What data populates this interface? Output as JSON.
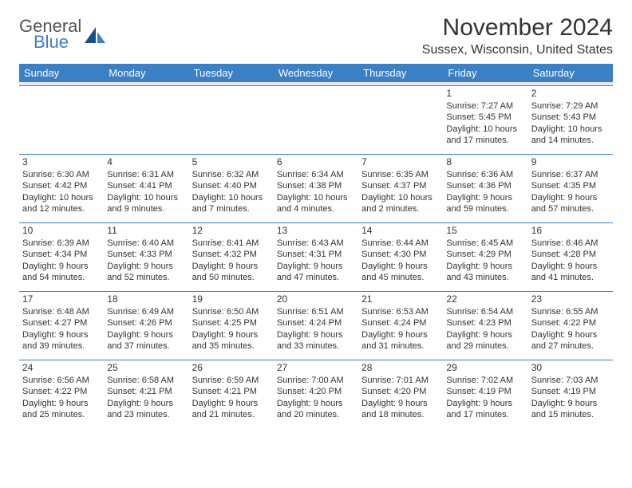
{
  "logo": {
    "word1": "General",
    "word2": "Blue",
    "accent_color": "#3b7fc4",
    "text_color": "#555555"
  },
  "title": "November 2024",
  "location": "Sussex, Wisconsin, United States",
  "colors": {
    "header_bg": "#3b7fc4",
    "header_text": "#ffffff",
    "cell_border": "#3b7fc4",
    "body_text": "#333333",
    "spacer_bg": "#eaeaea",
    "page_bg": "#ffffff"
  },
  "typography": {
    "title_fontsize": 30,
    "location_fontsize": 16,
    "header_fontsize": 13,
    "cell_fontsize": 11,
    "font_family": "Arial"
  },
  "day_headers": [
    "Sunday",
    "Monday",
    "Tuesday",
    "Wednesday",
    "Thursday",
    "Friday",
    "Saturday"
  ],
  "weeks": [
    [
      null,
      null,
      null,
      null,
      null,
      {
        "num": "1",
        "sunrise": "Sunrise: 7:27 AM",
        "sunset": "Sunset: 5:45 PM",
        "daylight1": "Daylight: 10 hours",
        "daylight2": "and 17 minutes."
      },
      {
        "num": "2",
        "sunrise": "Sunrise: 7:29 AM",
        "sunset": "Sunset: 5:43 PM",
        "daylight1": "Daylight: 10 hours",
        "daylight2": "and 14 minutes."
      }
    ],
    [
      {
        "num": "3",
        "sunrise": "Sunrise: 6:30 AM",
        "sunset": "Sunset: 4:42 PM",
        "daylight1": "Daylight: 10 hours",
        "daylight2": "and 12 minutes."
      },
      {
        "num": "4",
        "sunrise": "Sunrise: 6:31 AM",
        "sunset": "Sunset: 4:41 PM",
        "daylight1": "Daylight: 10 hours",
        "daylight2": "and 9 minutes."
      },
      {
        "num": "5",
        "sunrise": "Sunrise: 6:32 AM",
        "sunset": "Sunset: 4:40 PM",
        "daylight1": "Daylight: 10 hours",
        "daylight2": "and 7 minutes."
      },
      {
        "num": "6",
        "sunrise": "Sunrise: 6:34 AM",
        "sunset": "Sunset: 4:38 PM",
        "daylight1": "Daylight: 10 hours",
        "daylight2": "and 4 minutes."
      },
      {
        "num": "7",
        "sunrise": "Sunrise: 6:35 AM",
        "sunset": "Sunset: 4:37 PM",
        "daylight1": "Daylight: 10 hours",
        "daylight2": "and 2 minutes."
      },
      {
        "num": "8",
        "sunrise": "Sunrise: 6:36 AM",
        "sunset": "Sunset: 4:36 PM",
        "daylight1": "Daylight: 9 hours",
        "daylight2": "and 59 minutes."
      },
      {
        "num": "9",
        "sunrise": "Sunrise: 6:37 AM",
        "sunset": "Sunset: 4:35 PM",
        "daylight1": "Daylight: 9 hours",
        "daylight2": "and 57 minutes."
      }
    ],
    [
      {
        "num": "10",
        "sunrise": "Sunrise: 6:39 AM",
        "sunset": "Sunset: 4:34 PM",
        "daylight1": "Daylight: 9 hours",
        "daylight2": "and 54 minutes."
      },
      {
        "num": "11",
        "sunrise": "Sunrise: 6:40 AM",
        "sunset": "Sunset: 4:33 PM",
        "daylight1": "Daylight: 9 hours",
        "daylight2": "and 52 minutes."
      },
      {
        "num": "12",
        "sunrise": "Sunrise: 6:41 AM",
        "sunset": "Sunset: 4:32 PM",
        "daylight1": "Daylight: 9 hours",
        "daylight2": "and 50 minutes."
      },
      {
        "num": "13",
        "sunrise": "Sunrise: 6:43 AM",
        "sunset": "Sunset: 4:31 PM",
        "daylight1": "Daylight: 9 hours",
        "daylight2": "and 47 minutes."
      },
      {
        "num": "14",
        "sunrise": "Sunrise: 6:44 AM",
        "sunset": "Sunset: 4:30 PM",
        "daylight1": "Daylight: 9 hours",
        "daylight2": "and 45 minutes."
      },
      {
        "num": "15",
        "sunrise": "Sunrise: 6:45 AM",
        "sunset": "Sunset: 4:29 PM",
        "daylight1": "Daylight: 9 hours",
        "daylight2": "and 43 minutes."
      },
      {
        "num": "16",
        "sunrise": "Sunrise: 6:46 AM",
        "sunset": "Sunset: 4:28 PM",
        "daylight1": "Daylight: 9 hours",
        "daylight2": "and 41 minutes."
      }
    ],
    [
      {
        "num": "17",
        "sunrise": "Sunrise: 6:48 AM",
        "sunset": "Sunset: 4:27 PM",
        "daylight1": "Daylight: 9 hours",
        "daylight2": "and 39 minutes."
      },
      {
        "num": "18",
        "sunrise": "Sunrise: 6:49 AM",
        "sunset": "Sunset: 4:26 PM",
        "daylight1": "Daylight: 9 hours",
        "daylight2": "and 37 minutes."
      },
      {
        "num": "19",
        "sunrise": "Sunrise: 6:50 AM",
        "sunset": "Sunset: 4:25 PM",
        "daylight1": "Daylight: 9 hours",
        "daylight2": "and 35 minutes."
      },
      {
        "num": "20",
        "sunrise": "Sunrise: 6:51 AM",
        "sunset": "Sunset: 4:24 PM",
        "daylight1": "Daylight: 9 hours",
        "daylight2": "and 33 minutes."
      },
      {
        "num": "21",
        "sunrise": "Sunrise: 6:53 AM",
        "sunset": "Sunset: 4:24 PM",
        "daylight1": "Daylight: 9 hours",
        "daylight2": "and 31 minutes."
      },
      {
        "num": "22",
        "sunrise": "Sunrise: 6:54 AM",
        "sunset": "Sunset: 4:23 PM",
        "daylight1": "Daylight: 9 hours",
        "daylight2": "and 29 minutes."
      },
      {
        "num": "23",
        "sunrise": "Sunrise: 6:55 AM",
        "sunset": "Sunset: 4:22 PM",
        "daylight1": "Daylight: 9 hours",
        "daylight2": "and 27 minutes."
      }
    ],
    [
      {
        "num": "24",
        "sunrise": "Sunrise: 6:56 AM",
        "sunset": "Sunset: 4:22 PM",
        "daylight1": "Daylight: 9 hours",
        "daylight2": "and 25 minutes."
      },
      {
        "num": "25",
        "sunrise": "Sunrise: 6:58 AM",
        "sunset": "Sunset: 4:21 PM",
        "daylight1": "Daylight: 9 hours",
        "daylight2": "and 23 minutes."
      },
      {
        "num": "26",
        "sunrise": "Sunrise: 6:59 AM",
        "sunset": "Sunset: 4:21 PM",
        "daylight1": "Daylight: 9 hours",
        "daylight2": "and 21 minutes."
      },
      {
        "num": "27",
        "sunrise": "Sunrise: 7:00 AM",
        "sunset": "Sunset: 4:20 PM",
        "daylight1": "Daylight: 9 hours",
        "daylight2": "and 20 minutes."
      },
      {
        "num": "28",
        "sunrise": "Sunrise: 7:01 AM",
        "sunset": "Sunset: 4:20 PM",
        "daylight1": "Daylight: 9 hours",
        "daylight2": "and 18 minutes."
      },
      {
        "num": "29",
        "sunrise": "Sunrise: 7:02 AM",
        "sunset": "Sunset: 4:19 PM",
        "daylight1": "Daylight: 9 hours",
        "daylight2": "and 17 minutes."
      },
      {
        "num": "30",
        "sunrise": "Sunrise: 7:03 AM",
        "sunset": "Sunset: 4:19 PM",
        "daylight1": "Daylight: 9 hours",
        "daylight2": "and 15 minutes."
      }
    ]
  ]
}
